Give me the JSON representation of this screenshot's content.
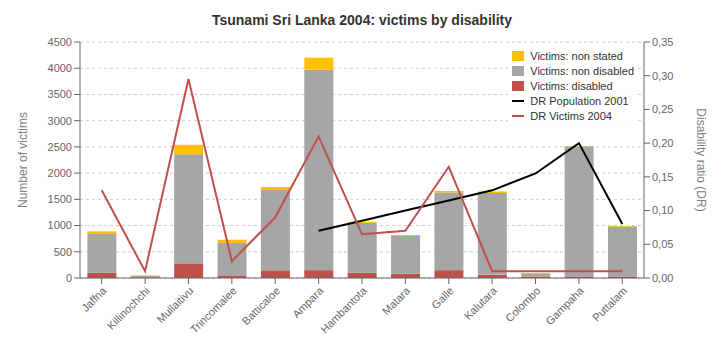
{
  "chart_data": {
    "type": "bar",
    "title": "Tsunami Sri Lanka 2004:  victims by disability",
    "categories": [
      "Jaffna",
      "Killinochchi",
      "Mullaitivu",
      "Trincomalee",
      "Batticaloe",
      "Ampara",
      "Hambantota",
      "Matara",
      "Galle",
      "Kalutara",
      "Colombo",
      "Gampaha",
      "Puttalam"
    ],
    "series": [
      {
        "name": "Victims: disabled",
        "type": "bar",
        "color": "#c0504d",
        "values": [
          100,
          15,
          280,
          50,
          150,
          150,
          100,
          80,
          150,
          60,
          30,
          30,
          30
        ]
      },
      {
        "name": "Victims: non disabled",
        "type": "bar",
        "color": "#a6a6a6",
        "values": [
          740,
          30,
          2080,
          620,
          1530,
          3820,
          950,
          720,
          1480,
          1560,
          60,
          2480,
          950
        ]
      },
      {
        "name": "Victims: non stated",
        "type": "bar",
        "color": "#ffc000",
        "values": [
          50,
          5,
          180,
          60,
          55,
          230,
          20,
          20,
          30,
          30,
          5,
          5,
          10
        ]
      },
      {
        "name": "DR Population 2001",
        "type": "line",
        "color": "#000000",
        "axis": "y2",
        "values": [
          null,
          null,
          null,
          null,
          null,
          0.07,
          0.085,
          0.1,
          0.115,
          0.13,
          0.155,
          0.2,
          0.08
        ]
      },
      {
        "name": "DR Victims 2004",
        "type": "line",
        "color": "#c0504d",
        "axis": "y2",
        "values": [
          0.13,
          0.01,
          0.295,
          0.025,
          0.09,
          0.21,
          0.065,
          0.07,
          0.165,
          0.01,
          0.01,
          0.01,
          0.01
        ]
      }
    ],
    "stacked": true,
    "ylabel": "Number of victims",
    "y2label": "Disability ratio (DR)",
    "ylim": [
      0,
      4500
    ],
    "yticks": [
      0,
      500,
      1000,
      1500,
      2000,
      2500,
      3000,
      3500,
      4000,
      4500
    ],
    "y2lim": [
      0,
      0.35
    ],
    "y2ticks": [
      {
        "value": 0.0,
        "label": "0,00"
      },
      {
        "value": 0.05,
        "label": "0,05"
      },
      {
        "value": 0.1,
        "label": "0,10"
      },
      {
        "value": 0.15,
        "label": "0,15"
      },
      {
        "value": 0.2,
        "label": "0,20"
      },
      {
        "value": 0.25,
        "label": "0,25"
      },
      {
        "value": 0.3,
        "label": "0,30"
      },
      {
        "value": 0.35,
        "label": "0,35"
      }
    ],
    "grid": true,
    "legend": "upper right"
  }
}
